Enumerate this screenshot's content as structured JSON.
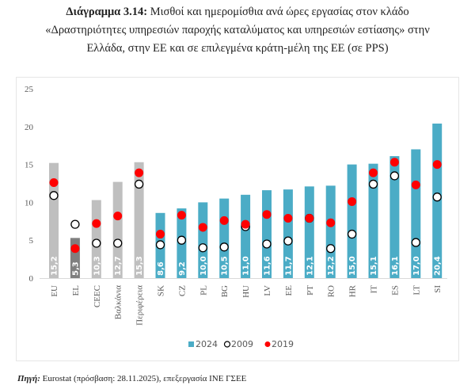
{
  "title": {
    "label": "Διάγραμμα 3.14:",
    "line1": "Μισθοί και ημερομίσθια ανά ώρες εργασίας στον κλάδο",
    "line2": "«Δραστηριότητες υπηρεσιών παροχής καταλύματος και υπηρεσιών εστίασης» στην",
    "line3": "Ελλάδα, στην ΕΕ και σε επιλεγμένα κράτη-μέλη της ΕΕ (σε PPS)"
  },
  "source": {
    "label": "Πηγή:",
    "text": "Eurostat (πρόσβαση: 28.11.2025), επεξεργασία ΙΝΕ ΓΣΕΕ"
  },
  "chart_data": {
    "type": "bar",
    "title": "Μισθοί και ημερομίσθια ανά ώρες εργασίας στον κλάδο «Δραστηριότητες υπηρεσιών παροχής καταλύματος και υπηρεσιών εστίασης» στην Ελλάδα, στην ΕΕ και σε επιλεγμένα κράτη-μέλη της ΕΕ (σε PPS)",
    "xlabel": "",
    "ylabel": "",
    "ylim": [
      0,
      25
    ],
    "yticks": [
      0,
      5,
      10,
      15,
      20,
      25
    ],
    "grid": false,
    "legend": "bottom",
    "categories": [
      "EU",
      "EL",
      "CEEC",
      "Βαλκάνια",
      "Περιφέρεια",
      "SK",
      "CZ",
      "PL",
      "BG",
      "HU",
      "LV",
      "EE",
      "PT",
      "RO",
      "HR",
      "IT",
      "ES",
      "LT",
      "SI"
    ],
    "bar_labels": [
      "15,2",
      "5,3",
      "10,3",
      "12,7",
      "15,3",
      "8,6",
      "9,2",
      "10,0",
      "10,5",
      "11,0",
      "11,6",
      "11,7",
      "12,1",
      "12,2",
      "15,0",
      "15,1",
      "16,1",
      "17,0",
      "20,4"
    ],
    "bar_colors": [
      "#bfbfbf",
      "#7f7f7f",
      "#bfbfbf",
      "#bfbfbf",
      "#bfbfbf",
      "#4bacc6",
      "#4bacc6",
      "#4bacc6",
      "#4bacc6",
      "#4bacc6",
      "#4bacc6",
      "#4bacc6",
      "#4bacc6",
      "#4bacc6",
      "#4bacc6",
      "#4bacc6",
      "#4bacc6",
      "#4bacc6",
      "#4bacc6"
    ],
    "series": [
      {
        "name": "2024",
        "kind": "bar",
        "color": "#4bacc6",
        "values": [
          15.2,
          5.3,
          10.3,
          12.7,
          15.3,
          8.6,
          9.2,
          10.0,
          10.5,
          11.0,
          11.6,
          11.7,
          12.1,
          12.2,
          15.0,
          15.1,
          16.1,
          17.0,
          20.4
        ]
      },
      {
        "name": "2009",
        "kind": "marker-hollow",
        "color": "#000000",
        "values": [
          10.9,
          7.1,
          4.6,
          4.6,
          12.4,
          4.4,
          5.0,
          4.0,
          4.1,
          6.8,
          4.5,
          4.9,
          7.9,
          3.9,
          5.8,
          12.4,
          13.5,
          4.7,
          10.7
        ]
      },
      {
        "name": "2019",
        "kind": "marker-filled",
        "color": "#ff0000",
        "values": [
          12.6,
          3.9,
          7.2,
          8.2,
          13.9,
          5.8,
          8.3,
          6.7,
          7.6,
          7.1,
          8.4,
          7.9,
          7.9,
          7.3,
          10.1,
          13.9,
          15.3,
          12.3,
          15.0
        ]
      }
    ]
  }
}
